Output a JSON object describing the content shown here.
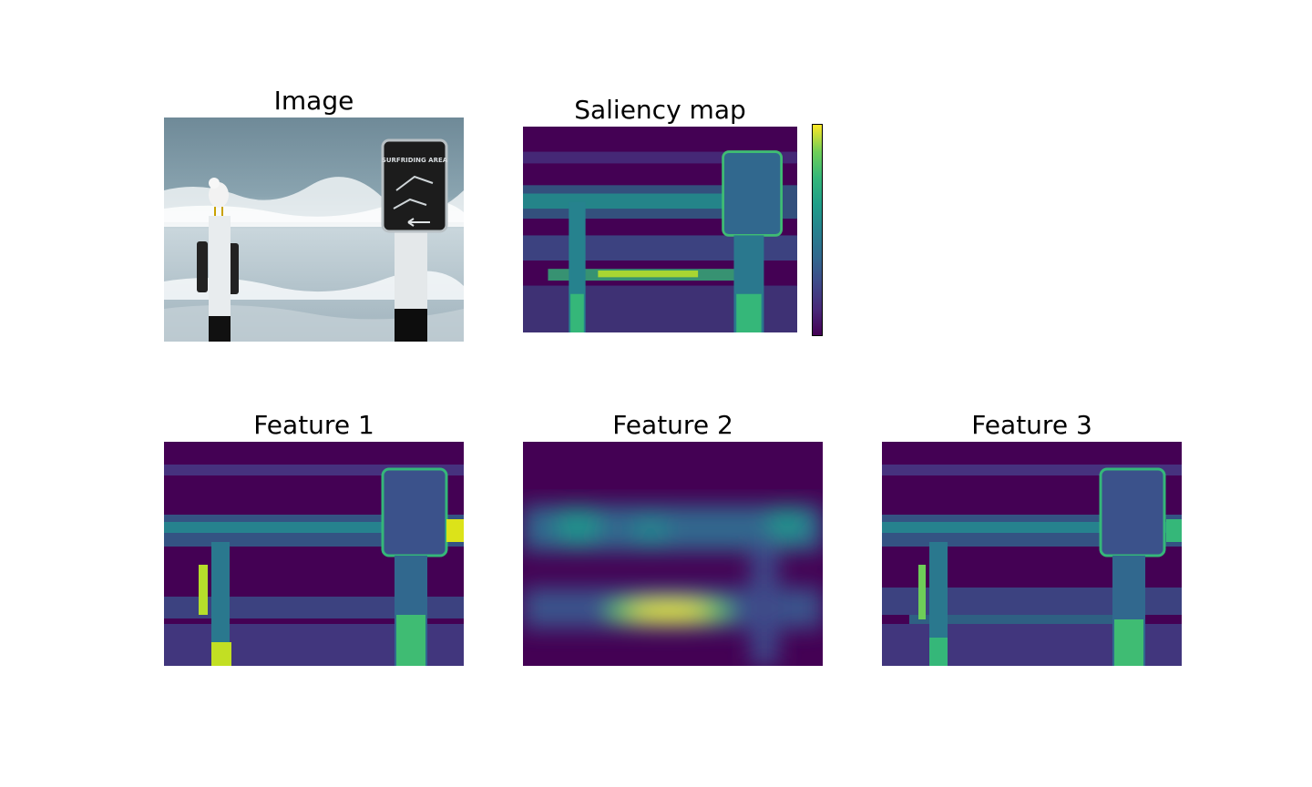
{
  "panels": {
    "image": {
      "title": "Image"
    },
    "saliency": {
      "title": "Saliency map"
    },
    "feature1": {
      "title": "Feature 1"
    },
    "feature2": {
      "title": "Feature 2"
    },
    "feature3": {
      "title": "Feature 3"
    }
  },
  "photo_sign": {
    "line1": "SURFRIDING AREA"
  },
  "colormap": "viridis",
  "colors": {
    "viridis_low": "#440154",
    "viridis_high": "#fde725"
  }
}
